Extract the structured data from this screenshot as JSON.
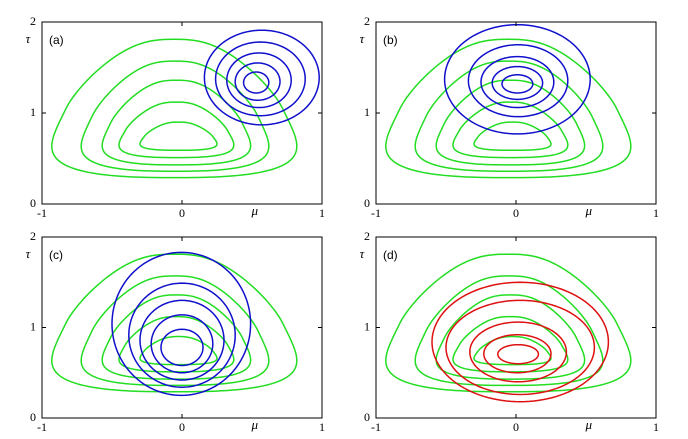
{
  "chart_data": [
    {
      "type": "contour",
      "label": "(a)",
      "xlabel": "μ",
      "ylabel": "τ",
      "xlim": [
        -1,
        1
      ],
      "ylim": [
        0,
        2
      ],
      "xticks": [
        -1,
        0,
        1
      ],
      "yticks": [
        0,
        1,
        2
      ],
      "series": [
        {
          "color": "#22dd22",
          "shape": "teardrop",
          "contours": [
            [
              -0.93,
              0.82,
              0.29,
              1.81
            ],
            [
              -0.72,
              0.62,
              0.36,
              1.57
            ],
            [
              -0.57,
              0.49,
              0.43,
              1.36
            ],
            [
              -0.45,
              0.37,
              0.51,
              1.12
            ],
            [
              -0.3,
              0.25,
              0.59,
              0.9
            ]
          ]
        },
        {
          "color": "#1010cc",
          "shape": "ellipse",
          "contours": [
            [
              0.16,
              0.98,
              0.87,
              1.91
            ],
            [
              0.24,
              0.88,
              0.97,
              1.78
            ],
            [
              0.32,
              0.78,
              1.06,
              1.66
            ],
            [
              0.38,
              0.7,
              1.14,
              1.55
            ],
            [
              0.44,
              0.62,
              1.22,
              1.45
            ]
          ]
        }
      ]
    },
    {
      "type": "contour",
      "label": "(b)",
      "xlabel": "μ",
      "ylabel": "τ",
      "xlim": [
        -1,
        1
      ],
      "ylim": [
        0,
        2
      ],
      "xticks": [
        -1,
        0,
        1
      ],
      "yticks": [
        0,
        1,
        2
      ],
      "series": [
        {
          "color": "#22dd22",
          "shape": "teardrop",
          "contours": [
            [
              -0.93,
              0.82,
              0.29,
              1.81
            ],
            [
              -0.72,
              0.62,
              0.36,
              1.57
            ],
            [
              -0.57,
              0.49,
              0.43,
              1.36
            ],
            [
              -0.45,
              0.37,
              0.51,
              1.12
            ],
            [
              -0.3,
              0.25,
              0.59,
              0.9
            ]
          ]
        },
        {
          "color": "#1010cc",
          "shape": "ellipse",
          "contours": [
            [
              -0.51,
              0.53,
              0.77,
              1.97
            ],
            [
              -0.34,
              0.37,
              0.96,
              1.75
            ],
            [
              -0.25,
              0.27,
              1.06,
              1.62
            ],
            [
              -0.17,
              0.19,
              1.15,
              1.51
            ],
            [
              -0.1,
              0.12,
              1.22,
              1.42
            ]
          ]
        }
      ]
    },
    {
      "type": "contour",
      "label": "(c)",
      "xlabel": "μ",
      "ylabel": "τ",
      "xlim": [
        -1,
        1
      ],
      "ylim": [
        0,
        2
      ],
      "xticks": [
        -1,
        0,
        1
      ],
      "yticks": [
        0,
        1,
        2
      ],
      "series": [
        {
          "color": "#22dd22",
          "shape": "teardrop",
          "contours": [
            [
              -0.93,
              0.82,
              0.29,
              1.81
            ],
            [
              -0.72,
              0.62,
              0.36,
              1.57
            ],
            [
              -0.57,
              0.49,
              0.43,
              1.36
            ],
            [
              -0.45,
              0.37,
              0.51,
              1.12
            ],
            [
              -0.3,
              0.25,
              0.59,
              0.9
            ]
          ]
        },
        {
          "color": "#1010cc",
          "shape": "ellipse",
          "contours": [
            [
              -0.5,
              0.49,
              0.25,
              1.83
            ],
            [
              -0.38,
              0.38,
              0.34,
              1.49
            ],
            [
              -0.3,
              0.3,
              0.42,
              1.3
            ],
            [
              -0.22,
              0.22,
              0.5,
              1.14
            ],
            [
              -0.15,
              0.15,
              0.58,
              0.98
            ]
          ]
        }
      ]
    },
    {
      "type": "contour",
      "label": "(d)",
      "xlabel": "μ",
      "ylabel": "τ",
      "xlim": [
        -1,
        1
      ],
      "ylim": [
        0,
        2
      ],
      "xticks": [
        -1,
        0,
        1
      ],
      "yticks": [
        0,
        1,
        2
      ],
      "series": [
        {
          "color": "#22dd22",
          "shape": "teardrop",
          "contours": [
            [
              -0.93,
              0.82,
              0.29,
              1.81
            ],
            [
              -0.72,
              0.62,
              0.36,
              1.57
            ],
            [
              -0.57,
              0.49,
              0.43,
              1.36
            ],
            [
              -0.45,
              0.37,
              0.51,
              1.12
            ],
            [
              -0.3,
              0.25,
              0.59,
              0.9
            ]
          ]
        },
        {
          "color": "#dd1111",
          "shape": "ellipse",
          "contours": [
            [
              -0.6,
              0.66,
              0.18,
              1.5
            ],
            [
              -0.5,
              0.56,
              0.26,
              1.3
            ],
            [
              -0.33,
              0.36,
              0.4,
              1.06
            ],
            [
              -0.23,
              0.25,
              0.5,
              0.92
            ],
            [
              -0.13,
              0.16,
              0.6,
              0.81
            ]
          ]
        }
      ]
    }
  ]
}
